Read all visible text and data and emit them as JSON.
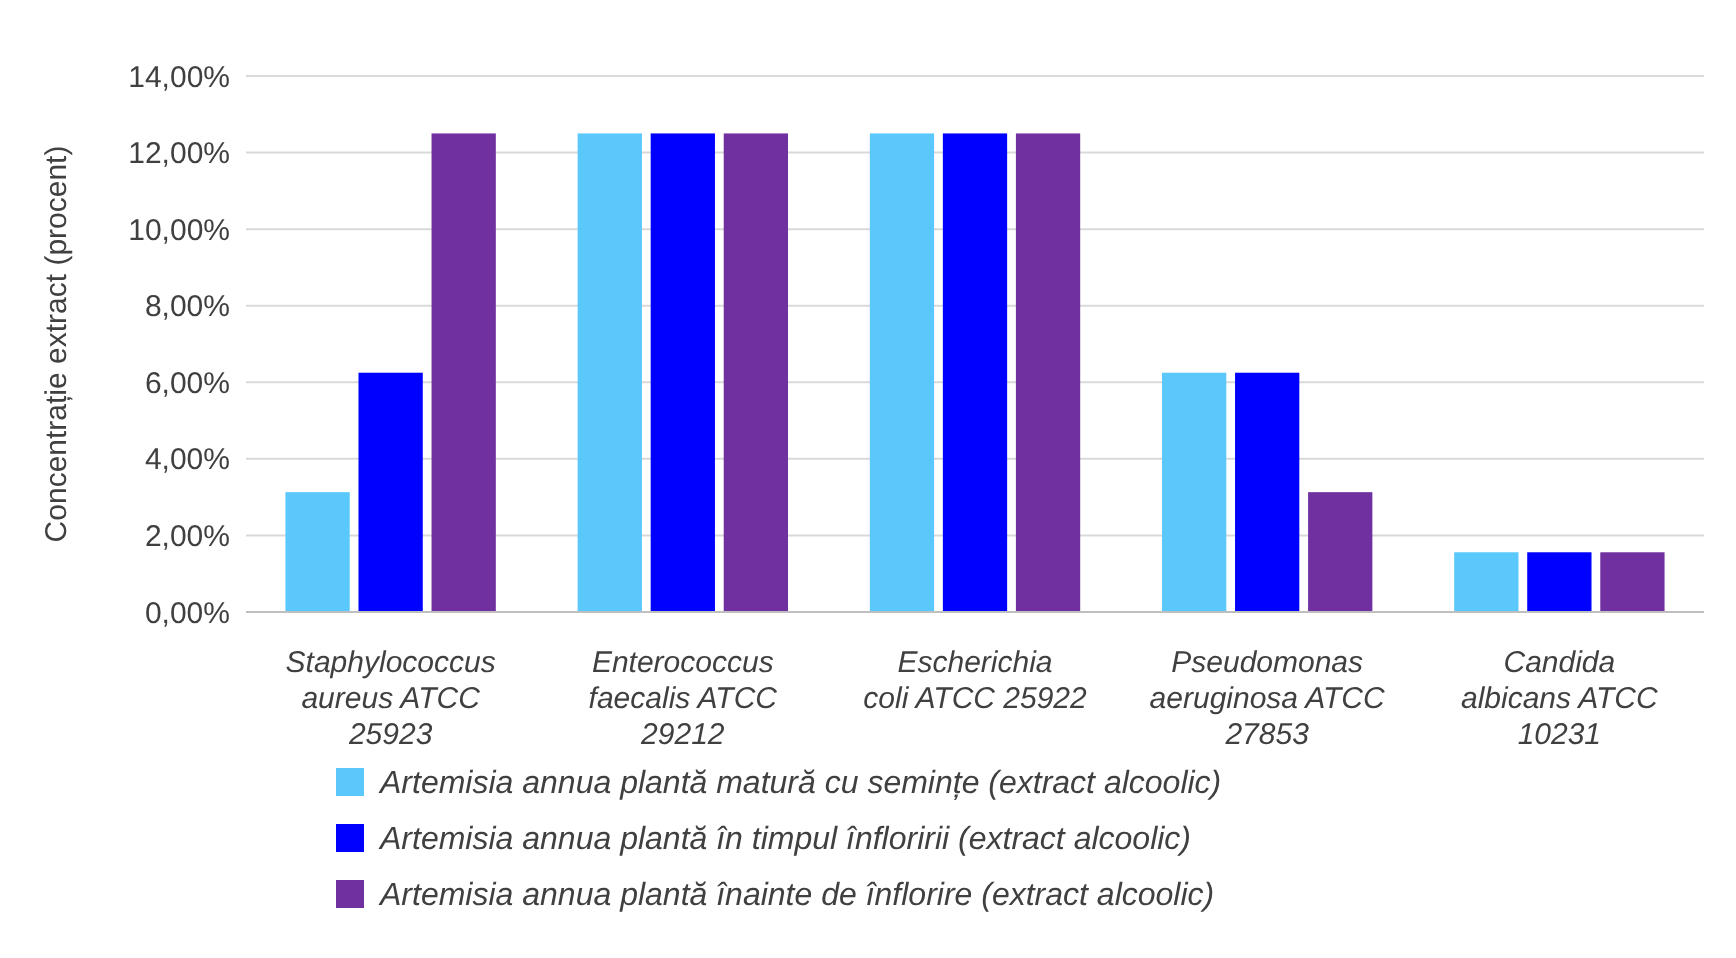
{
  "chart_data": {
    "type": "bar",
    "ylabel": "Concentrație extract (procent)",
    "categories": [
      "Staphylococcus aureus ATCC 25923",
      "Enterococcus faecalis ATCC 29212",
      "Escherichia coli ATCC 25922",
      "Pseudomonas aeruginosa ATCC 27853",
      "Candida albicans ATCC 10231"
    ],
    "series": [
      {
        "name": "Artemisia annua plantă matură cu semințe (extract alcoolic)",
        "color": "#5bc8fb",
        "values": [
          3.13,
          12.5,
          12.5,
          6.25,
          1.56
        ]
      },
      {
        "name": "Artemisia annua plantă în timpul înfloririi (extract alcoolic)",
        "color": "#0000ff",
        "values": [
          6.25,
          12.5,
          12.5,
          6.25,
          1.56
        ]
      },
      {
        "name": "Artemisia annua plantă înainte de înflorire (extract alcoolic)",
        "color": "#7030a0",
        "values": [
          12.5,
          12.5,
          12.5,
          3.13,
          1.56
        ]
      }
    ],
    "ylim": [
      0,
      14
    ],
    "yticks": [
      {
        "value": 0,
        "label": "0,00%"
      },
      {
        "value": 2,
        "label": "2,00%"
      },
      {
        "value": 4,
        "label": "4,00%"
      },
      {
        "value": 6,
        "label": "6,00%"
      },
      {
        "value": 8,
        "label": "8,00%"
      },
      {
        "value": 10,
        "label": "10,00%"
      },
      {
        "value": 12,
        "label": "12,00%"
      },
      {
        "value": 14,
        "label": "14,00%"
      }
    ],
    "grid": "y",
    "legend": "bottom"
  }
}
